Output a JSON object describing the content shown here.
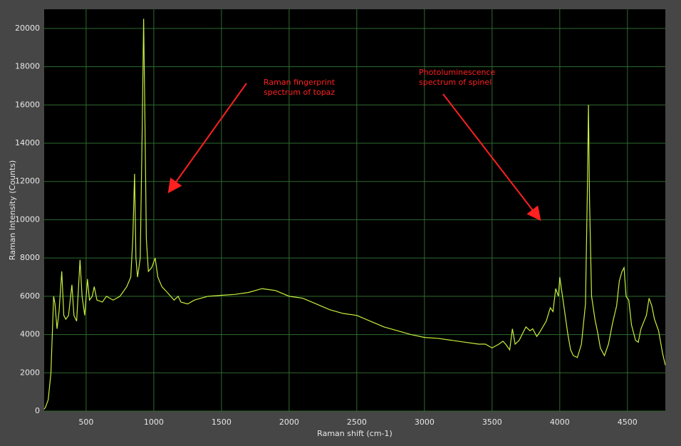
{
  "chart_data": {
    "type": "line",
    "x_label": "Raman shift (cm-1)",
    "y_label": "Raman Intensity (Counts)",
    "xlim": [
      190,
      4780
    ],
    "ylim": [
      0,
      21000
    ],
    "xticks": [
      500,
      1000,
      1500,
      2000,
      2500,
      3000,
      3500,
      4000,
      4500
    ],
    "yticks": [
      0,
      2000,
      4000,
      6000,
      8000,
      10000,
      12000,
      14000,
      16000,
      18000,
      20000
    ],
    "grid": true,
    "x": [
      190,
      200,
      220,
      240,
      250,
      260,
      270,
      285,
      300,
      320,
      335,
      350,
      370,
      395,
      410,
      430,
      455,
      470,
      490,
      510,
      525,
      545,
      560,
      580,
      620,
      650,
      700,
      750,
      800,
      830,
      845,
      858,
      868,
      880,
      900,
      915,
      925,
      935,
      945,
      960,
      985,
      1010,
      1030,
      1060,
      1100,
      1150,
      1180,
      1200,
      1250,
      1300,
      1400,
      1500,
      1600,
      1700,
      1800,
      1900,
      2000,
      2100,
      2200,
      2300,
      2400,
      2500,
      2600,
      2700,
      2800,
      2900,
      3000,
      3100,
      3200,
      3300,
      3400,
      3450,
      3500,
      3550,
      3580,
      3600,
      3630,
      3650,
      3670,
      3700,
      3750,
      3780,
      3800,
      3830,
      3850,
      3900,
      3930,
      3950,
      3970,
      3990,
      4000,
      4020,
      4040,
      4060,
      4080,
      4100,
      4130,
      4160,
      4190,
      4205,
      4212,
      4220,
      4235,
      4260,
      4280,
      4300,
      4330,
      4360,
      4390,
      4420,
      4440,
      4460,
      4475,
      4490,
      4510,
      4530,
      4560,
      4580,
      4600,
      4640,
      4660,
      4680,
      4700,
      4730,
      4760,
      4780
    ],
    "series": [
      {
        "name": "Raman spectrum",
        "color": "#c8f03c",
        "values": [
          100,
          200,
          600,
          2000,
          4000,
          6000,
          5600,
          4300,
          5200,
          7300,
          5000,
          4800,
          5000,
          6600,
          5000,
          4700,
          7900,
          6000,
          5000,
          6900,
          5800,
          6000,
          6500,
          5800,
          5700,
          6000,
          5800,
          6000,
          6500,
          7000,
          9000,
          12400,
          8000,
          7000,
          8000,
          15000,
          20500,
          15000,
          9000,
          7300,
          7500,
          8000,
          7000,
          6500,
          6200,
          5800,
          6000,
          5700,
          5600,
          5800,
          6000,
          6050,
          6100,
          6200,
          6400,
          6300,
          6000,
          5900,
          5600,
          5300,
          5100,
          5000,
          4700,
          4400,
          4200,
          4000,
          3850,
          3800,
          3700,
          3600,
          3500,
          3500,
          3300,
          3500,
          3650,
          3500,
          3200,
          4300,
          3500,
          3700,
          4400,
          4200,
          4300,
          3900,
          4100,
          4700,
          5400,
          5200,
          6400,
          6000,
          7000,
          6000,
          5000,
          4000,
          3200,
          2900,
          2800,
          3500,
          5600,
          12000,
          16000,
          11000,
          6000,
          4800,
          4100,
          3300,
          2900,
          3500,
          4600,
          5500,
          6800,
          7300,
          7500,
          6000,
          5800,
          4500,
          3700,
          3600,
          4300,
          5000,
          5900,
          5500,
          4800,
          4200,
          3000,
          2400
        ]
      }
    ],
    "annotations": [
      {
        "lines": [
          "Raman fingerprint",
          "spectrum of topaz"
        ]
      },
      {
        "lines": [
          "Photoluminescence",
          "spectrum of spinel"
        ]
      }
    ]
  }
}
